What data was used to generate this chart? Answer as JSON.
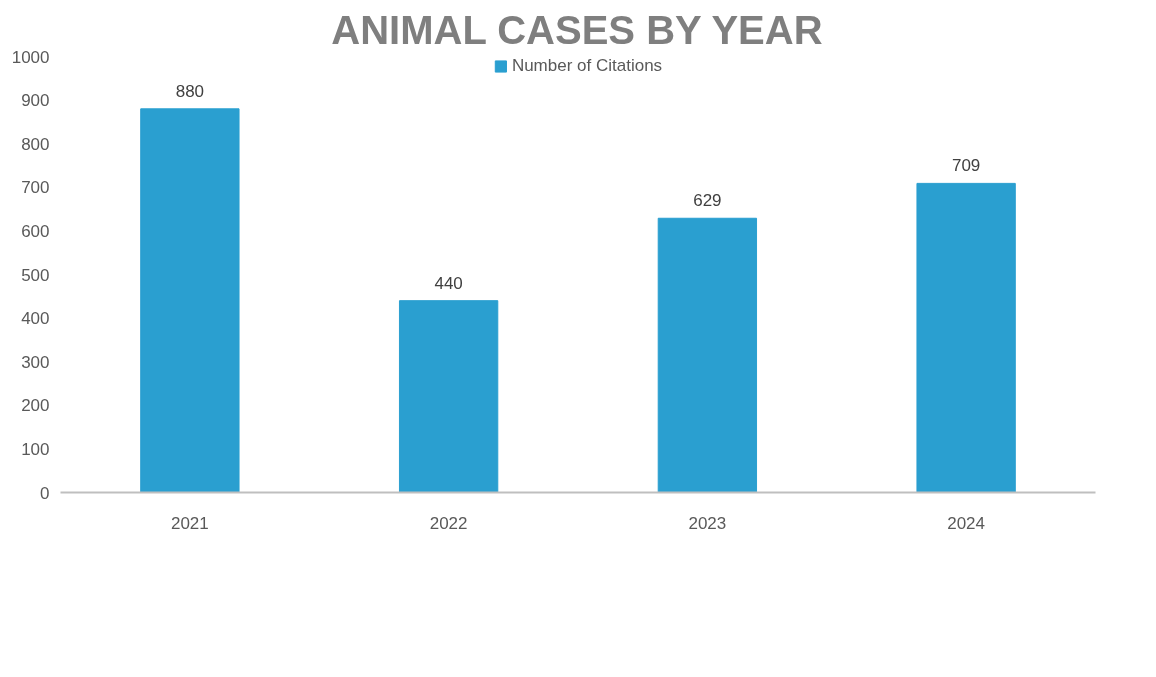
{
  "chart_data": {
    "type": "bar",
    "title": "ANIMAL CASES BY YEAR",
    "categories": [
      "2021",
      "2022",
      "2023",
      "2024"
    ],
    "series": [
      {
        "name": "Number of Citations",
        "color": "#2a9fd0",
        "values": [
          880,
          440,
          629,
          709
        ]
      }
    ],
    "ylim": [
      0,
      1000
    ],
    "yticks": [
      0,
      100,
      200,
      300,
      400,
      500,
      600,
      700,
      800,
      900,
      1000
    ],
    "data_labels": true,
    "legend": "top",
    "grid": false
  }
}
